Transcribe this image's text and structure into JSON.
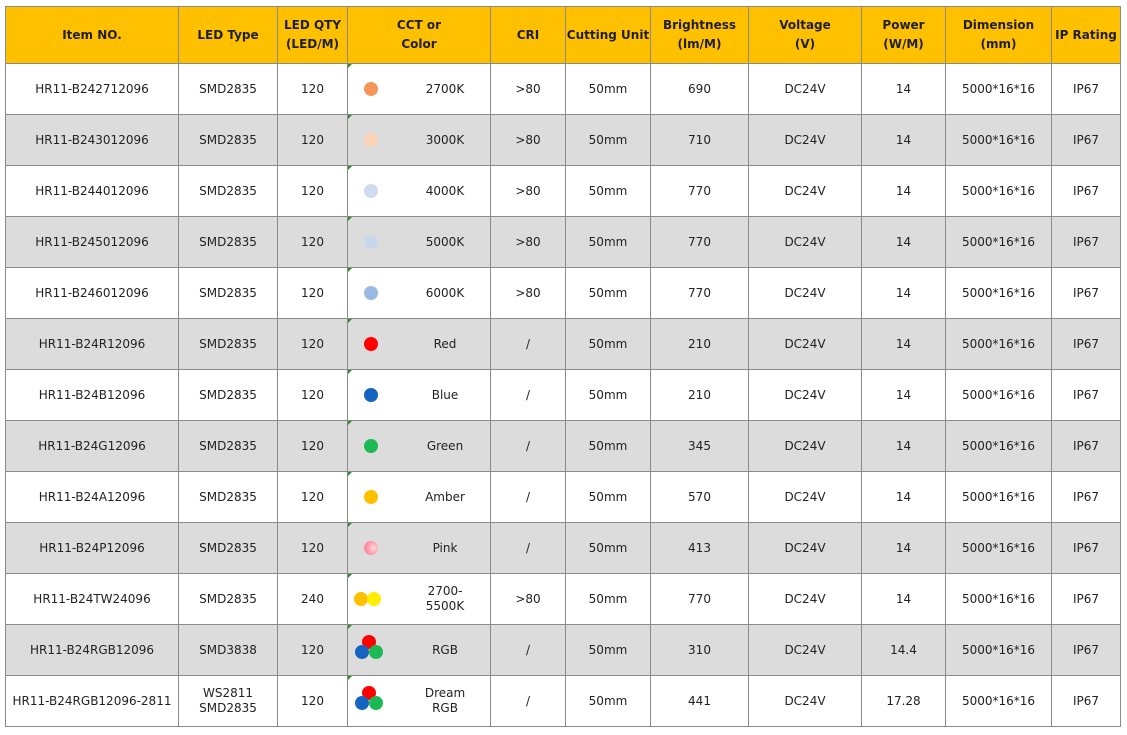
{
  "headers": {
    "item_no": "Item NO.",
    "led_type": "LED Type",
    "led_qty_1": "LED QTY",
    "led_qty_2": "(LED/M)",
    "cct_1": "CCT or",
    "cct_2": "Color",
    "cri": "CRI",
    "cutting_unit": "Cutting Unit",
    "brightness_1": "Brightness",
    "brightness_2": "(lm/M)",
    "voltage_1": "Voltage",
    "voltage_2": "(V)",
    "power_1": "Power",
    "power_2": "(W/M)",
    "dimension_1": "Dimension",
    "dimension_2": "(mm)",
    "ip_rating": "IP Rating"
  },
  "rows": [
    {
      "item": "HR11-B242712096",
      "led_type": "SMD2835",
      "led_type_2": "",
      "qty": "120",
      "color": "2700K",
      "swatch": "single",
      "colors": [
        "#f4955a"
      ],
      "cri": ">80",
      "cut": "50mm",
      "brightness": "690",
      "voltage": "DC24V",
      "power": "14",
      "dimension": "5000*16*16",
      "ip": "IP67"
    },
    {
      "item": "HR11-B243012096",
      "led_type": "SMD2835",
      "led_type_2": "",
      "qty": "120",
      "color": "3000K",
      "swatch": "single",
      "colors": [
        "#fdd3b6"
      ],
      "cri": ">80",
      "cut": "50mm",
      "brightness": "710",
      "voltage": "DC24V",
      "power": "14",
      "dimension": "5000*16*16",
      "ip": "IP67"
    },
    {
      "item": "HR11-B244012096",
      "led_type": "SMD2835",
      "led_type_2": "",
      "qty": "120",
      "color": "4000K",
      "swatch": "single",
      "colors": [
        "#cfdcef"
      ],
      "cri": ">80",
      "cut": "50mm",
      "brightness": "770",
      "voltage": "DC24V",
      "power": "14",
      "dimension": "5000*16*16",
      "ip": "IP67"
    },
    {
      "item": "HR11-B245012096",
      "led_type": "SMD2835",
      "led_type_2": "",
      "qty": "120",
      "color": "5000K",
      "swatch": "single",
      "colors": [
        "#c8d8ec"
      ],
      "cri": ">80",
      "cut": "50mm",
      "brightness": "770",
      "voltage": "DC24V",
      "power": "14",
      "dimension": "5000*16*16",
      "ip": "IP67"
    },
    {
      "item": "HR11-B246012096",
      "led_type": "SMD2835",
      "led_type_2": "",
      "qty": "120",
      "color": "6000K",
      "swatch": "single",
      "colors": [
        "#9bb9e3"
      ],
      "cri": ">80",
      "cut": "50mm",
      "brightness": "770",
      "voltage": "DC24V",
      "power": "14",
      "dimension": "5000*16*16",
      "ip": "IP67"
    },
    {
      "item": "HR11-B24R12096",
      "led_type": "SMD2835",
      "led_type_2": "",
      "qty": "120",
      "color": "Red",
      "swatch": "single",
      "colors": [
        "#ff0000"
      ],
      "cri": "/",
      "cut": "50mm",
      "brightness": "210",
      "voltage": "DC24V",
      "power": "14",
      "dimension": "5000*16*16",
      "ip": "IP67"
    },
    {
      "item": "HR11-B24B12096",
      "led_type": "SMD2835",
      "led_type_2": "",
      "qty": "120",
      "color": "Blue",
      "swatch": "single",
      "colors": [
        "#1565c0"
      ],
      "cri": "/",
      "cut": "50mm",
      "brightness": "210",
      "voltage": "DC24V",
      "power": "14",
      "dimension": "5000*16*16",
      "ip": "IP67"
    },
    {
      "item": "HR11-B24G12096",
      "led_type": "SMD2835",
      "led_type_2": "",
      "qty": "120",
      "color": "Green",
      "swatch": "single",
      "colors": [
        "#1db954"
      ],
      "cri": "/",
      "cut": "50mm",
      "brightness": "345",
      "voltage": "DC24V",
      "power": "14",
      "dimension": "5000*16*16",
      "ip": "IP67"
    },
    {
      "item": "HR11-B24A12096",
      "led_type": "SMD2835",
      "led_type_2": "",
      "qty": "120",
      "color": "Amber",
      "swatch": "single",
      "colors": [
        "#ffc000"
      ],
      "cri": "/",
      "cut": "50mm",
      "brightness": "570",
      "voltage": "DC24V",
      "power": "14",
      "dimension": "5000*16*16",
      "ip": "IP67"
    },
    {
      "item": "HR11-B24P12096",
      "led_type": "SMD2835",
      "led_type_2": "",
      "qty": "120",
      "color": "Pink",
      "swatch": "single",
      "colors": [
        "#ff8a9a"
      ],
      "cri": "/",
      "cut": "50mm",
      "brightness": "413",
      "voltage": "DC24V",
      "power": "14",
      "dimension": "5000*16*16",
      "ip": "IP67"
    },
    {
      "item": "HR11-B24TW24096",
      "led_type": "SMD2835",
      "led_type_2": "",
      "qty": "240",
      "color": "2700-5500K",
      "swatch": "tw",
      "colors": [
        "#ffc000",
        "#ffee00"
      ],
      "cri": ">80",
      "cut": "50mm",
      "brightness": "770",
      "voltage": "DC24V",
      "power": "14",
      "dimension": "5000*16*16",
      "ip": "IP67"
    },
    {
      "item": "HR11-B24RGB12096",
      "led_type": "SMD3838",
      "led_type_2": "",
      "qty": "120",
      "color": "RGB",
      "swatch": "rgb",
      "colors": [
        "#ff0000",
        "#1565c0",
        "#1db954"
      ],
      "cri": "/",
      "cut": "50mm",
      "brightness": "310",
      "voltage": "DC24V",
      "power": "14.4",
      "dimension": "5000*16*16",
      "ip": "IP67"
    },
    {
      "item": "HR11-B24RGB12096-2811",
      "led_type": "WS2811",
      "led_type_2": "SMD2835",
      "qty": "120",
      "color": "Dream RGB",
      "swatch": "rgb",
      "colors": [
        "#ff0000",
        "#1565c0",
        "#1db954"
      ],
      "cri": "/",
      "cut": "50mm",
      "brightness": "441",
      "voltage": "DC24V",
      "power": "17.28",
      "dimension": "5000*16*16",
      "ip": "IP67"
    }
  ]
}
